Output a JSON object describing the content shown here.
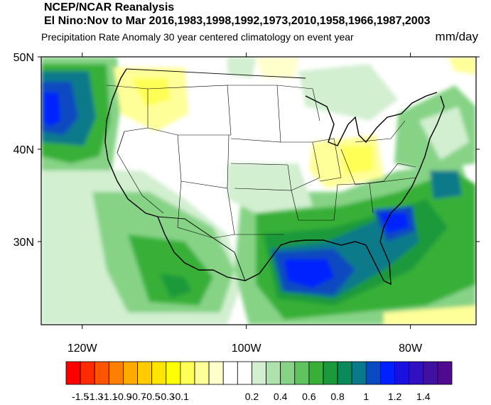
{
  "header": {
    "title_line1": "NCEP/NCAR Reanalysis",
    "title_line2": "El Nino:Nov to Mar 2016,1983,1998,1992,1973,2010,1958,1966,1987,2003",
    "subtitle": "Precipitation Rate Anomaly 30 year centered climatology on event year",
    "units": "mm/day"
  },
  "map": {
    "lat_ticks": [
      "50N",
      "40N",
      "30N"
    ],
    "lat_values": [
      50,
      40,
      30
    ],
    "lon_ticks": [
      "120W",
      "100W",
      "80W"
    ],
    "lon_values": [
      -120,
      -100,
      -80
    ],
    "lat_range": [
      21,
      50
    ],
    "lon_range": [
      -125,
      -72
    ]
  },
  "colorbar": {
    "colors": [
      "#ff0000",
      "#ff2a00",
      "#ff5500",
      "#ff8000",
      "#ffaa00",
      "#ffcc00",
      "#ffe600",
      "#ffff00",
      "#ffff55",
      "#ffff99",
      "#ffffcc",
      "#ffffff",
      "#ffffff",
      "#d2efd0",
      "#ade3ab",
      "#86d386",
      "#5fc45f",
      "#38b038",
      "#1a9a3a",
      "#0a8a5a",
      "#0a7a8a",
      "#0a4ac0",
      "#0020ff",
      "#1a10e0",
      "#3010c0",
      "#4010a0",
      "#500a90"
    ],
    "labels": [
      "-1.5",
      "-1.3",
      "-1.1",
      "-0.9",
      "-0.7",
      "-0.5",
      "-0.3",
      "-0.1",
      "0.2",
      "0.4",
      "0.6",
      "0.8",
      "1",
      "1.2",
      "1.4"
    ]
  }
}
